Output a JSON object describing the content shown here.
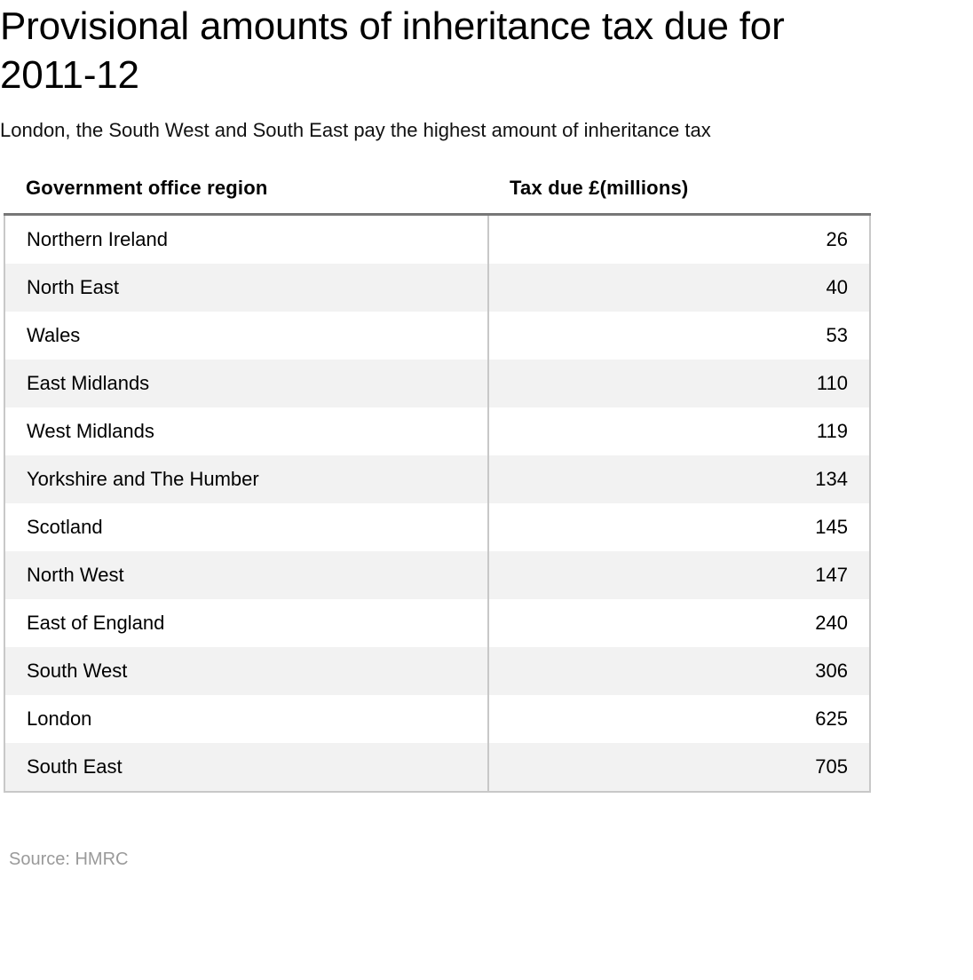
{
  "chart_data": {
    "type": "table",
    "title": "Provisional amounts of inheritance tax due for 2011-12",
    "subtitle": "London, the South West and South East pay the highest amount of inheritance tax",
    "columns": [
      "Government office region",
      "Tax due £(millions)"
    ],
    "rows": [
      {
        "region": "Northern Ireland",
        "value": "26"
      },
      {
        "region": "North East",
        "value": "40"
      },
      {
        "region": "Wales",
        "value": "53"
      },
      {
        "region": "East Midlands",
        "value": "110"
      },
      {
        "region": "West Midlands",
        "value": "119"
      },
      {
        "region": "Yorkshire and The Humber",
        "value": "134"
      },
      {
        "region": "Scotland",
        "value": "145"
      },
      {
        "region": "North West",
        "value": "147"
      },
      {
        "region": "East of England",
        "value": "240"
      },
      {
        "region": "South West",
        "value": "306"
      },
      {
        "region": "London",
        "value": "625"
      },
      {
        "region": "South East",
        "value": "705"
      }
    ],
    "source": "Source: HMRC"
  },
  "colors": {
    "header_rule": "#777777",
    "stripe": "#f2f2f2",
    "border": "#c8c8c8",
    "source_text": "#9a9a9a"
  }
}
